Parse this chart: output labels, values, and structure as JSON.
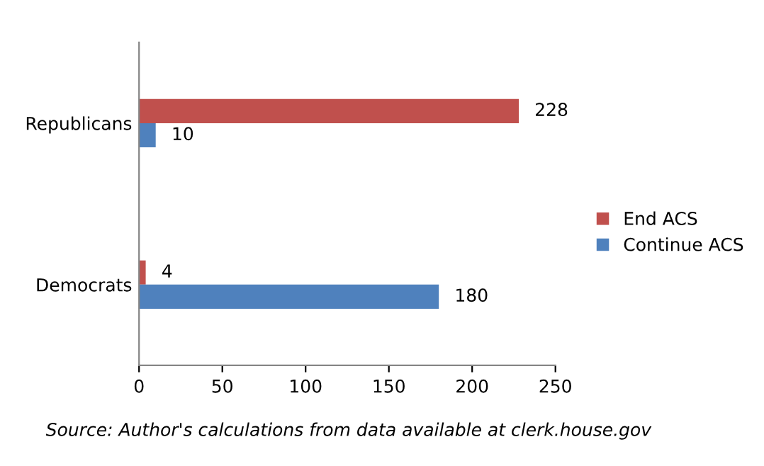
{
  "chart_data": {
    "type": "bar",
    "orientation": "horizontal",
    "categories": [
      "Republicans",
      "Democrats"
    ],
    "series": [
      {
        "name": "End ACS",
        "color": "#c0504d",
        "values": [
          228,
          4
        ]
      },
      {
        "name": "Continue ACS",
        "color": "#4f81bd",
        "values": [
          10,
          180
        ]
      }
    ],
    "xlim": [
      0,
      250
    ],
    "xticks": [
      0,
      50,
      100,
      150,
      200,
      250
    ],
    "data_labels": true,
    "legend": "right",
    "grid": false,
    "annotations": [
      "Source: Author's calculations from data available at clerk.house.gov"
    ]
  }
}
